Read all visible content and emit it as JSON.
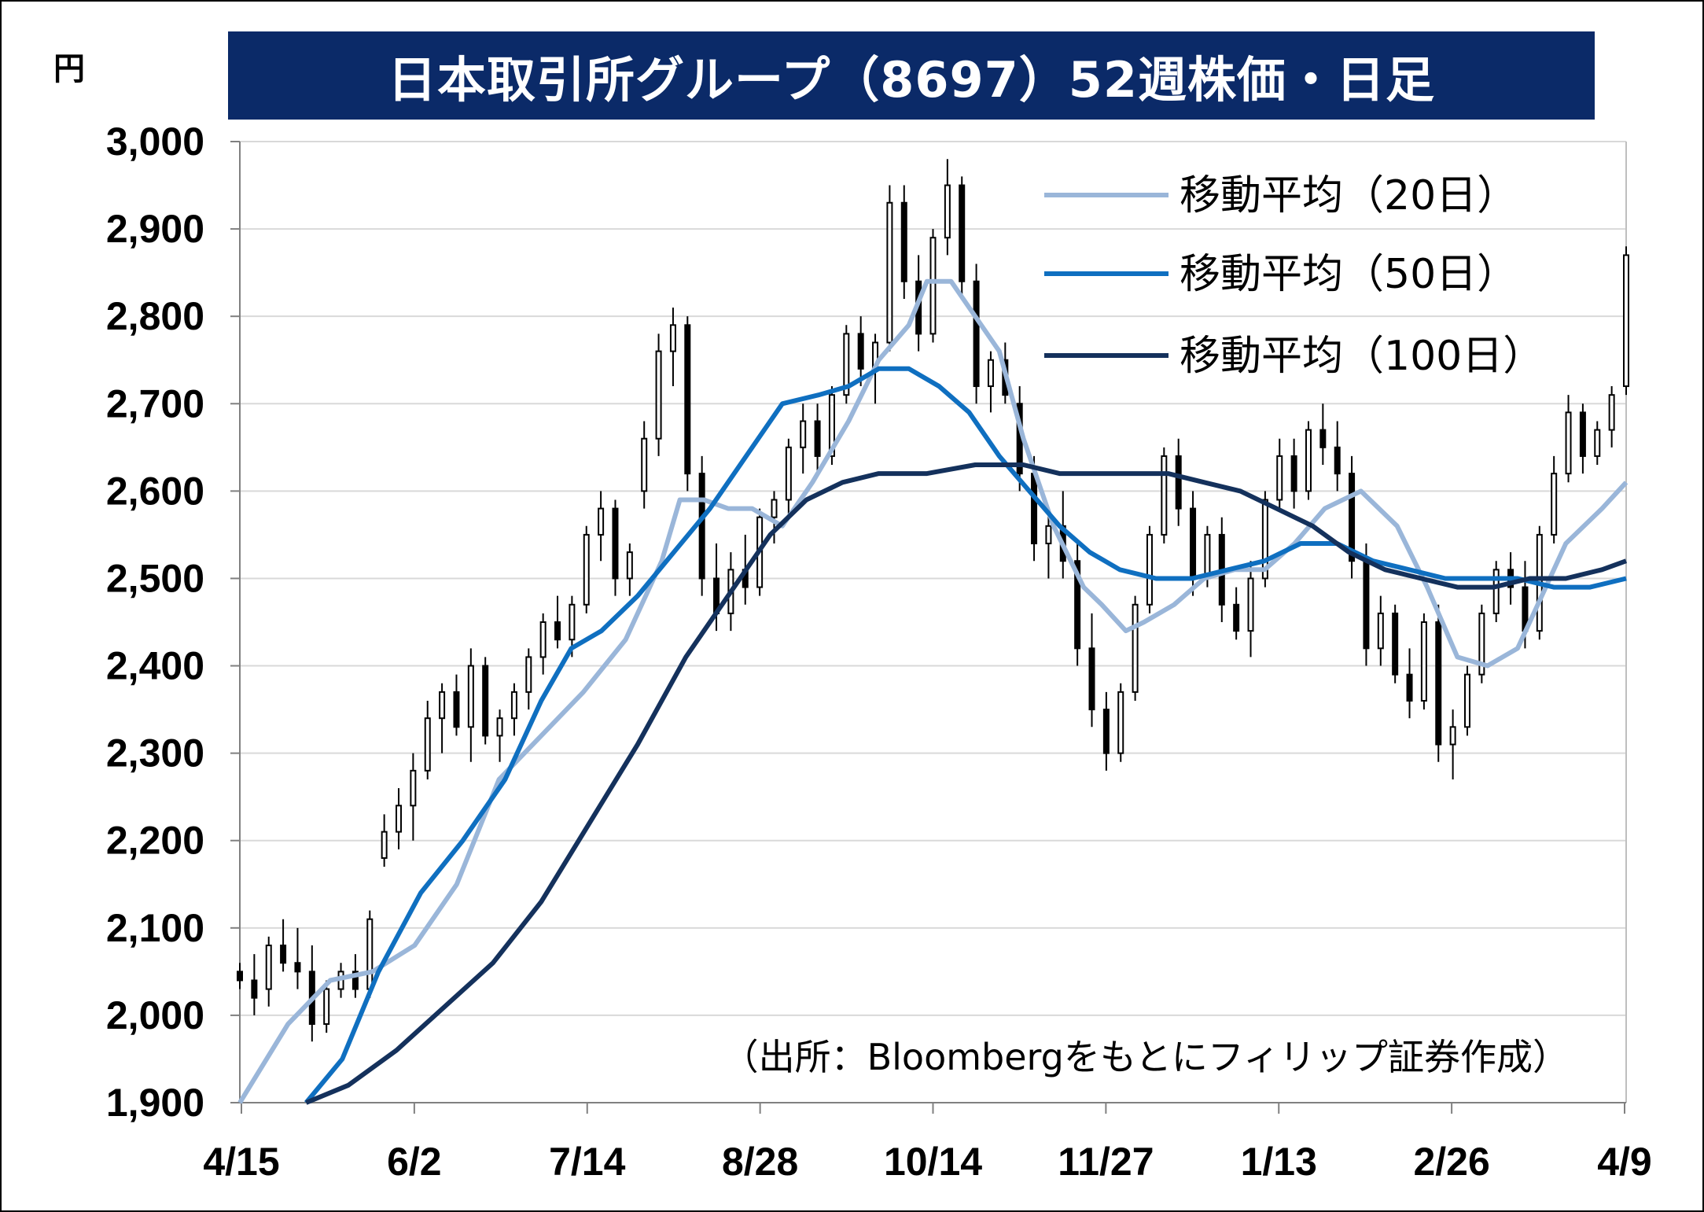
{
  "title": "日本取引所グループ（8697）52週株価・日足",
  "unit": "円",
  "source": "（出所：Bloombergをもとにフィリップ証券作成）",
  "colors": {
    "title_bg": "#0b2a68",
    "ma20": "#9ab6d9",
    "ma50": "#0f6fc0",
    "ma100": "#14315c",
    "grid": "#d9d9d9",
    "candle": "#000000"
  },
  "chart_data": {
    "type": "candlestick",
    "title": "日本取引所グループ（8697）52週株価・日足",
    "ylabel": "円",
    "ylim": [
      1900,
      3000
    ],
    "yticks": [
      1900,
      2000,
      2100,
      2200,
      2300,
      2400,
      2500,
      2600,
      2700,
      2800,
      2900,
      3000
    ],
    "ytick_labels": [
      "1,900",
      "2,000",
      "2,100",
      "2,200",
      "2,300",
      "2,400",
      "2,500",
      "2,600",
      "2,700",
      "2,800",
      "2,900",
      "3,000"
    ],
    "xticks": [
      "4/15",
      "6/2",
      "7/14",
      "8/28",
      "10/14",
      "11/27",
      "1/13",
      "2/26",
      "4/9"
    ],
    "legend_position": "top-right",
    "grid": true,
    "series": [
      {
        "name": "移動平均（20日）",
        "type": "line",
        "points": [
          [
            0,
            1900
          ],
          [
            8,
            1990
          ],
          [
            15,
            2040
          ],
          [
            22,
            2050
          ],
          [
            29,
            2080
          ],
          [
            36,
            2150
          ],
          [
            43,
            2270
          ],
          [
            50,
            2320
          ],
          [
            57,
            2370
          ],
          [
            64,
            2430
          ],
          [
            70,
            2520
          ],
          [
            73,
            2590
          ],
          [
            77,
            2590
          ],
          [
            81,
            2580
          ],
          [
            85,
            2580
          ],
          [
            90,
            2560
          ],
          [
            95,
            2610
          ],
          [
            101,
            2680
          ],
          [
            106,
            2750
          ],
          [
            111,
            2790
          ],
          [
            114,
            2840
          ],
          [
            118,
            2840
          ],
          [
            121,
            2810
          ],
          [
            126,
            2760
          ],
          [
            130,
            2660
          ],
          [
            135,
            2560
          ],
          [
            140,
            2490
          ],
          [
            143,
            2470
          ],
          [
            147,
            2440
          ],
          [
            150,
            2450
          ],
          [
            155,
            2470
          ],
          [
            160,
            2500
          ],
          [
            165,
            2510
          ],
          [
            170,
            2510
          ],
          [
            175,
            2540
          ],
          [
            180,
            2580
          ],
          [
            186,
            2600
          ],
          [
            192,
            2560
          ],
          [
            197,
            2490
          ],
          [
            202,
            2410
          ],
          [
            207,
            2400
          ],
          [
            212,
            2420
          ],
          [
            216,
            2480
          ],
          [
            220,
            2540
          ],
          [
            226,
            2580
          ],
          [
            230,
            2610
          ]
        ]
      },
      {
        "name": "移動平均（50日）",
        "type": "line",
        "points": [
          [
            11,
            1890
          ],
          [
            17,
            1950
          ],
          [
            23,
            2050
          ],
          [
            30,
            2140
          ],
          [
            37,
            2200
          ],
          [
            44,
            2270
          ],
          [
            50,
            2360
          ],
          [
            55,
            2420
          ],
          [
            60,
            2440
          ],
          [
            66,
            2480
          ],
          [
            72,
            2530
          ],
          [
            78,
            2580
          ],
          [
            84,
            2640
          ],
          [
            90,
            2700
          ],
          [
            96,
            2710
          ],
          [
            101,
            2720
          ],
          [
            106,
            2740
          ],
          [
            111,
            2740
          ],
          [
            116,
            2720
          ],
          [
            121,
            2690
          ],
          [
            126,
            2640
          ],
          [
            131,
            2600
          ],
          [
            136,
            2560
          ],
          [
            141,
            2530
          ],
          [
            146,
            2510
          ],
          [
            152,
            2500
          ],
          [
            158,
            2500
          ],
          [
            164,
            2510
          ],
          [
            170,
            2520
          ],
          [
            176,
            2540
          ],
          [
            182,
            2540
          ],
          [
            188,
            2520
          ],
          [
            194,
            2510
          ],
          [
            200,
            2500
          ],
          [
            206,
            2500
          ],
          [
            212,
            2500
          ],
          [
            218,
            2490
          ],
          [
            224,
            2490
          ],
          [
            230,
            2500
          ]
        ]
      },
      {
        "name": "移動平均（100日）",
        "type": "line",
        "points": [
          [
            11,
            1890
          ],
          [
            18,
            1920
          ],
          [
            26,
            1960
          ],
          [
            34,
            2010
          ],
          [
            42,
            2060
          ],
          [
            50,
            2130
          ],
          [
            58,
            2220
          ],
          [
            66,
            2310
          ],
          [
            74,
            2410
          ],
          [
            82,
            2490
          ],
          [
            88,
            2550
          ],
          [
            94,
            2590
          ],
          [
            100,
            2610
          ],
          [
            106,
            2620
          ],
          [
            114,
            2620
          ],
          [
            122,
            2630
          ],
          [
            130,
            2630
          ],
          [
            136,
            2620
          ],
          [
            142,
            2620
          ],
          [
            148,
            2620
          ],
          [
            154,
            2620
          ],
          [
            160,
            2610
          ],
          [
            166,
            2600
          ],
          [
            172,
            2580
          ],
          [
            178,
            2560
          ],
          [
            184,
            2530
          ],
          [
            190,
            2510
          ],
          [
            196,
            2500
          ],
          [
            202,
            2490
          ],
          [
            208,
            2490
          ],
          [
            214,
            2500
          ],
          [
            220,
            2500
          ],
          [
            226,
            2510
          ],
          [
            230,
            2520
          ]
        ]
      }
    ],
    "candles_ohlc": [
      [
        2050,
        2060,
        2030,
        2040
      ],
      [
        2040,
        2070,
        2000,
        2020
      ],
      [
        2030,
        2090,
        2010,
        2080
      ],
      [
        2080,
        2110,
        2050,
        2060
      ],
      [
        2060,
        2100,
        2030,
        2050
      ],
      [
        2050,
        2080,
        1970,
        1990
      ],
      [
        1990,
        2040,
        1980,
        2030
      ],
      [
        2030,
        2060,
        2020,
        2050
      ],
      [
        2050,
        2070,
        2020,
        2030
      ],
      [
        2030,
        2120,
        2020,
        2110
      ],
      [
        2180,
        2230,
        2170,
        2210
      ],
      [
        2210,
        2260,
        2190,
        2240
      ],
      [
        2240,
        2300,
        2200,
        2280
      ],
      [
        2280,
        2360,
        2270,
        2340
      ],
      [
        2340,
        2380,
        2300,
        2370
      ],
      [
        2370,
        2390,
        2320,
        2330
      ],
      [
        2330,
        2420,
        2290,
        2400
      ],
      [
        2400,
        2410,
        2310,
        2320
      ],
      [
        2320,
        2350,
        2290,
        2340
      ],
      [
        2340,
        2380,
        2320,
        2370
      ],
      [
        2370,
        2420,
        2350,
        2410
      ],
      [
        2410,
        2460,
        2390,
        2450
      ],
      [
        2450,
        2480,
        2420,
        2430
      ],
      [
        2430,
        2480,
        2410,
        2470
      ],
      [
        2470,
        2560,
        2460,
        2550
      ],
      [
        2550,
        2600,
        2520,
        2580
      ],
      [
        2580,
        2590,
        2480,
        2500
      ],
      [
        2500,
        2540,
        2480,
        2530
      ],
      [
        2600,
        2680,
        2580,
        2660
      ],
      [
        2660,
        2780,
        2640,
        2760
      ],
      [
        2760,
        2810,
        2720,
        2790
      ],
      [
        2790,
        2800,
        2600,
        2620
      ],
      [
        2620,
        2640,
        2480,
        2500
      ],
      [
        2500,
        2540,
        2440,
        2460
      ],
      [
        2460,
        2530,
        2440,
        2510
      ],
      [
        2510,
        2550,
        2470,
        2490
      ],
      [
        2490,
        2580,
        2480,
        2570
      ],
      [
        2570,
        2600,
        2540,
        2590
      ],
      [
        2590,
        2660,
        2570,
        2650
      ],
      [
        2650,
        2700,
        2620,
        2680
      ],
      [
        2680,
        2700,
        2620,
        2640
      ],
      [
        2640,
        2720,
        2630,
        2710
      ],
      [
        2710,
        2790,
        2700,
        2780
      ],
      [
        2780,
        2800,
        2720,
        2740
      ],
      [
        2740,
        2780,
        2700,
        2770
      ],
      [
        2770,
        2950,
        2760,
        2930
      ],
      [
        2930,
        2950,
        2820,
        2840
      ],
      [
        2840,
        2870,
        2760,
        2780
      ],
      [
        2780,
        2900,
        2770,
        2890
      ],
      [
        2890,
        2980,
        2870,
        2950
      ],
      [
        2950,
        2960,
        2820,
        2840
      ],
      [
        2840,
        2860,
        2700,
        2720
      ],
      [
        2720,
        2760,
        2690,
        2750
      ],
      [
        2750,
        2770,
        2700,
        2710
      ],
      [
        2700,
        2720,
        2600,
        2620
      ],
      [
        2620,
        2640,
        2520,
        2540
      ],
      [
        2540,
        2580,
        2500,
        2560
      ],
      [
        2560,
        2600,
        2500,
        2520
      ],
      [
        2520,
        2540,
        2400,
        2420
      ],
      [
        2420,
        2460,
        2330,
        2350
      ],
      [
        2350,
        2370,
        2280,
        2300
      ],
      [
        2300,
        2380,
        2290,
        2370
      ],
      [
        2370,
        2480,
        2360,
        2470
      ],
      [
        2470,
        2560,
        2460,
        2550
      ],
      [
        2550,
        2650,
        2540,
        2640
      ],
      [
        2640,
        2660,
        2560,
        2580
      ],
      [
        2580,
        2600,
        2480,
        2500
      ],
      [
        2500,
        2560,
        2490,
        2550
      ],
      [
        2550,
        2570,
        2450,
        2470
      ],
      [
        2470,
        2490,
        2430,
        2440
      ],
      [
        2440,
        2520,
        2410,
        2500
      ],
      [
        2500,
        2600,
        2490,
        2590
      ],
      [
        2590,
        2660,
        2580,
        2640
      ],
      [
        2640,
        2660,
        2580,
        2600
      ],
      [
        2600,
        2680,
        2590,
        2670
      ],
      [
        2670,
        2700,
        2630,
        2650
      ],
      [
        2650,
        2680,
        2600,
        2620
      ],
      [
        2620,
        2640,
        2500,
        2520
      ],
      [
        2520,
        2540,
        2400,
        2420
      ],
      [
        2420,
        2480,
        2400,
        2460
      ],
      [
        2460,
        2470,
        2380,
        2390
      ],
      [
        2390,
        2420,
        2340,
        2360
      ],
      [
        2360,
        2460,
        2350,
        2450
      ],
      [
        2450,
        2470,
        2290,
        2310
      ],
      [
        2310,
        2350,
        2270,
        2330
      ],
      [
        2330,
        2400,
        2320,
        2390
      ],
      [
        2390,
        2470,
        2380,
        2460
      ],
      [
        2460,
        2520,
        2450,
        2510
      ],
      [
        2510,
        2530,
        2470,
        2490
      ],
      [
        2490,
        2520,
        2420,
        2440
      ],
      [
        2440,
        2560,
        2430,
        2550
      ],
      [
        2550,
        2640,
        2540,
        2620
      ],
      [
        2620,
        2710,
        2610,
        2690
      ],
      [
        2690,
        2700,
        2620,
        2640
      ],
      [
        2640,
        2680,
        2630,
        2670
      ],
      [
        2670,
        2720,
        2650,
        2710
      ],
      [
        2720,
        2880,
        2710,
        2870
      ]
    ]
  }
}
